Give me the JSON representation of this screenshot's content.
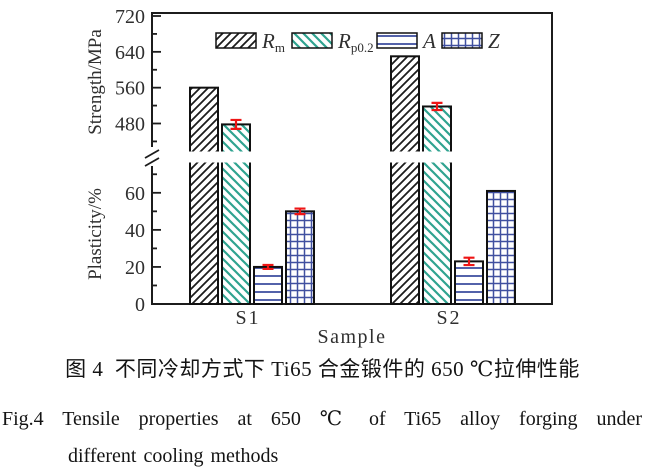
{
  "figure": {
    "caption_zh": "图 4  不同冷却方式下 Ti65 合金锻件的 650 ℃拉伸性能",
    "caption_en_line1": "Fig.4  Tensile properties at 650 ℃ of Ti65 alloy forging under",
    "caption_en_line2": "different cooling methods"
  },
  "chart_data": {
    "type": "bar",
    "title": "",
    "broken_axis": true,
    "categories": [
      "S1",
      "S2"
    ],
    "xlabel": "Sample",
    "axes": {
      "strength": {
        "label": "Strength/MPa",
        "major_ticks": [
          480,
          560,
          640,
          720
        ],
        "minor_ticks": [
          440,
          520,
          600,
          680
        ],
        "range": [
          440,
          720
        ]
      },
      "plasticity": {
        "label": "Plasticity/%",
        "major_ticks": [
          0,
          20,
          40,
          60
        ],
        "minor_ticks": [
          10,
          30,
          50,
          70
        ],
        "range": [
          0,
          72
        ]
      }
    },
    "series": [
      {
        "name": "Rm",
        "legend_base": "R",
        "legend_sub": "m",
        "axis": "strength",
        "pattern": "diagonal-forward-black",
        "values": [
          560,
          630
        ],
        "errors": [
          null,
          null
        ]
      },
      {
        "name": "Rp0.2",
        "legend_base": "R",
        "legend_sub": "p0.2",
        "axis": "strength",
        "pattern": "diagonal-back-teal",
        "values": [
          478,
          518
        ],
        "errors": [
          10,
          8
        ]
      },
      {
        "name": "A",
        "legend_base": "A",
        "legend_sub": "",
        "axis": "plasticity",
        "pattern": "horizontal-lines-blue",
        "values": [
          20,
          23
        ],
        "errors": [
          1,
          2
        ]
      },
      {
        "name": "Z",
        "legend_base": "Z",
        "legend_sub": "",
        "axis": "plasticity",
        "pattern": "grid-blue",
        "values": [
          50,
          61
        ],
        "errors": [
          1.5,
          null
        ]
      }
    ],
    "legend_position": "top-inside",
    "grid": false,
    "colors": {
      "hatch_black": "#1c1c1c",
      "hatch_teal": "#2fa390",
      "line_blue": "#4050a0",
      "error_red": "#ee1515",
      "axis": "#1c1c1c",
      "text": "#2f2f2f"
    }
  }
}
